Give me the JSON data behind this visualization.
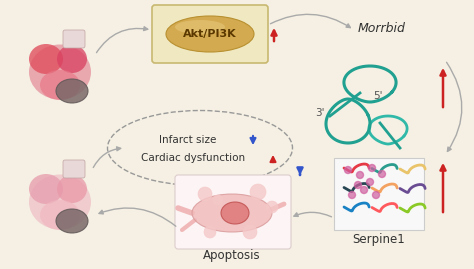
{
  "background_color": "#f5f0e3",
  "pill_box_color": "#f0e8c0",
  "pill_box_edge": "#c8b870",
  "pill_color": "#d4aa50",
  "pill_edge": "#b89030",
  "pill_text": "Akt/PI3K",
  "pill_text_color": "#5a3800",
  "morrbid_text": "Morrbid",
  "morrbid_color": "#333333",
  "rna_color": "#20a090",
  "rna_color2": "#30b8a8",
  "serpine1_text": "Serpine1",
  "serpine1_color": "#333333",
  "apoptosis_text": "Apoptosis",
  "apoptosis_color": "#333333",
  "infarct_text": "Infarct size",
  "cardiac_text": "Cardiac dysfunction",
  "text_color": "#333333",
  "arrow_gray": "#aaaaaa",
  "arrow_red": "#cc2222",
  "arrow_blue": "#3355cc",
  "heart_red": "#e05060",
  "heart_pink": "#f4b8c0",
  "infarct_gray": "#807070",
  "cell_pink": "#f0b0b0",
  "cell_nucleus": "#d07080"
}
